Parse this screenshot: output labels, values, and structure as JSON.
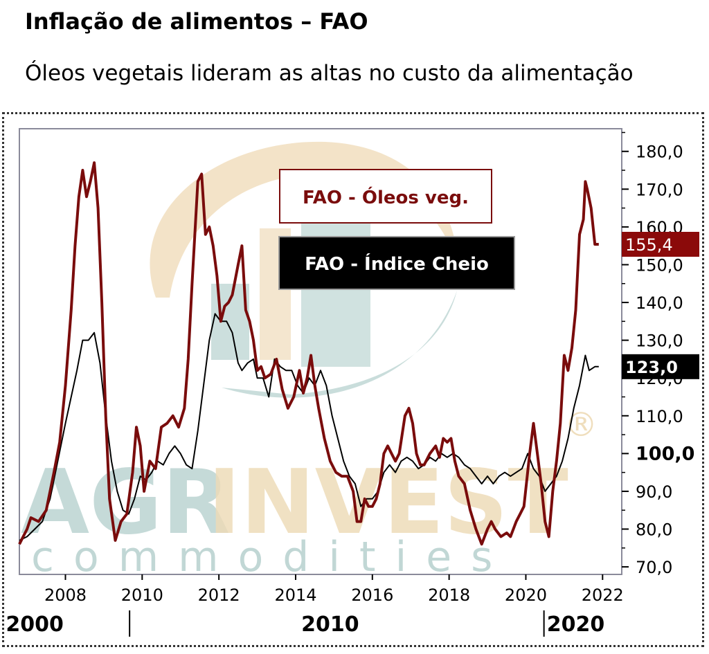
{
  "header": {
    "title": "Inflação de alimentos – FAO",
    "subtitle": "Óleos vegetais lideram as altas no custo da alimentação"
  },
  "colors": {
    "oils": "#7a0c0c",
    "full": "#000000",
    "watermark_teal": "#a9c9c6",
    "watermark_tan": "#ecd6ad"
  },
  "watermark": {
    "brand_part1": "AGR",
    "brand_part2": "INVEST",
    "tagline": "commodities",
    "registered": "®"
  },
  "chart_data": {
    "type": "line",
    "title": "",
    "xlabel": "",
    "ylabel": "",
    "xlim": [
      2006.8,
      2022.5
    ],
    "ylim": [
      68,
      186
    ],
    "x_ticks": [
      2008,
      2010,
      2012,
      2014,
      2016,
      2018,
      2020,
      2022
    ],
    "y_ticks": [
      {
        "value": 180,
        "label": "180,0"
      },
      {
        "value": 170,
        "label": "170,0"
      },
      {
        "value": 160,
        "label": "160,0"
      },
      {
        "value": 150,
        "label": "150,0"
      },
      {
        "value": 140,
        "label": "140,0"
      },
      {
        "value": 130,
        "label": "130,0"
      },
      {
        "value": 120,
        "label": "120,0"
      },
      {
        "value": 110,
        "label": "110,0"
      },
      {
        "value": 100,
        "label": "100,0",
        "bold": true
      },
      {
        "value": 90,
        "label": "90,0"
      },
      {
        "value": 80,
        "label": "80,0"
      },
      {
        "value": 70,
        "label": "70,0"
      }
    ],
    "decades": [
      {
        "label": "2000",
        "x": 2007.2
      },
      {
        "label": "2010",
        "x": 2014.9
      },
      {
        "label": "2020",
        "x": 2021.3
      }
    ],
    "decade_dividers": [
      2009.6,
      2020.4
    ],
    "legend": [
      {
        "name": "FAO - Óleos veg.",
        "style": "outline"
      },
      {
        "name": "FAO - Índice Cheio",
        "style": "filled"
      }
    ],
    "last_value_badges": [
      {
        "label": "155,4",
        "value": 155.4,
        "series": 0
      },
      {
        "label": "123,0",
        "value": 123.0,
        "series": 1
      }
    ],
    "series": [
      {
        "name": "FAO - Óleos veg.",
        "color": "#7a0c0c",
        "points": [
          [
            2006.8,
            76
          ],
          [
            2006.9,
            78
          ],
          [
            2007.0,
            80
          ],
          [
            2007.1,
            83
          ],
          [
            2007.3,
            82
          ],
          [
            2007.5,
            85
          ],
          [
            2007.7,
            95
          ],
          [
            2007.85,
            103
          ],
          [
            2008.0,
            118
          ],
          [
            2008.15,
            138
          ],
          [
            2008.25,
            155
          ],
          [
            2008.35,
            168
          ],
          [
            2008.45,
            175
          ],
          [
            2008.55,
            168
          ],
          [
            2008.65,
            172
          ],
          [
            2008.75,
            177
          ],
          [
            2008.85,
            165
          ],
          [
            2008.95,
            140
          ],
          [
            2009.05,
            110
          ],
          [
            2009.15,
            88
          ],
          [
            2009.3,
            77
          ],
          [
            2009.45,
            82
          ],
          [
            2009.6,
            84
          ],
          [
            2009.75,
            95
          ],
          [
            2009.85,
            107
          ],
          [
            2009.95,
            102
          ],
          [
            2010.05,
            90
          ],
          [
            2010.2,
            98
          ],
          [
            2010.35,
            96
          ],
          [
            2010.5,
            107
          ],
          [
            2010.65,
            108
          ],
          [
            2010.8,
            110
          ],
          [
            2010.95,
            107
          ],
          [
            2011.1,
            112
          ],
          [
            2011.2,
            125
          ],
          [
            2011.3,
            145
          ],
          [
            2011.45,
            172
          ],
          [
            2011.55,
            174
          ],
          [
            2011.65,
            158
          ],
          [
            2011.75,
            160
          ],
          [
            2011.85,
            155
          ],
          [
            2011.95,
            147
          ],
          [
            2012.05,
            135
          ],
          [
            2012.15,
            139
          ],
          [
            2012.25,
            140
          ],
          [
            2012.35,
            142
          ],
          [
            2012.5,
            150
          ],
          [
            2012.6,
            155
          ],
          [
            2012.7,
            138
          ],
          [
            2012.8,
            135
          ],
          [
            2012.9,
            130
          ],
          [
            2013.0,
            122
          ],
          [
            2013.1,
            123
          ],
          [
            2013.2,
            120
          ],
          [
            2013.35,
            121
          ],
          [
            2013.5,
            125
          ],
          [
            2013.65,
            117
          ],
          [
            2013.8,
            112
          ],
          [
            2013.95,
            115
          ],
          [
            2014.1,
            122
          ],
          [
            2014.2,
            116
          ],
          [
            2014.3,
            120
          ],
          [
            2014.4,
            126
          ],
          [
            2014.5,
            118
          ],
          [
            2014.6,
            112
          ],
          [
            2014.75,
            104
          ],
          [
            2014.9,
            98
          ],
          [
            2015.05,
            95
          ],
          [
            2015.2,
            94
          ],
          [
            2015.35,
            94
          ],
          [
            2015.5,
            90
          ],
          [
            2015.6,
            82
          ],
          [
            2015.7,
            82
          ],
          [
            2015.8,
            88
          ],
          [
            2015.9,
            86
          ],
          [
            2016.0,
            86
          ],
          [
            2016.1,
            88
          ],
          [
            2016.2,
            92
          ],
          [
            2016.3,
            100
          ],
          [
            2016.4,
            102
          ],
          [
            2016.5,
            100
          ],
          [
            2016.6,
            98
          ],
          [
            2016.7,
            100
          ],
          [
            2016.85,
            110
          ],
          [
            2016.95,
            112
          ],
          [
            2017.05,
            108
          ],
          [
            2017.15,
            100
          ],
          [
            2017.25,
            97
          ],
          [
            2017.35,
            97
          ],
          [
            2017.5,
            100
          ],
          [
            2017.65,
            102
          ],
          [
            2017.75,
            99
          ],
          [
            2017.85,
            104
          ],
          [
            2017.95,
            103
          ],
          [
            2018.05,
            104
          ],
          [
            2018.15,
            98
          ],
          [
            2018.25,
            94
          ],
          [
            2018.4,
            92
          ],
          [
            2018.55,
            85
          ],
          [
            2018.7,
            80
          ],
          [
            2018.85,
            76
          ],
          [
            2019.0,
            80
          ],
          [
            2019.1,
            82
          ],
          [
            2019.2,
            80
          ],
          [
            2019.35,
            78
          ],
          [
            2019.5,
            79
          ],
          [
            2019.6,
            78
          ],
          [
            2019.75,
            82
          ],
          [
            2019.85,
            84
          ],
          [
            2019.95,
            86
          ],
          [
            2020.1,
            100
          ],
          [
            2020.2,
            108
          ],
          [
            2020.3,
            100
          ],
          [
            2020.4,
            92
          ],
          [
            2020.5,
            82
          ],
          [
            2020.6,
            78
          ],
          [
            2020.7,
            90
          ],
          [
            2020.8,
            98
          ],
          [
            2020.9,
            108
          ],
          [
            2021.0,
            126
          ],
          [
            2021.1,
            122
          ],
          [
            2021.2,
            128
          ],
          [
            2021.3,
            138
          ],
          [
            2021.4,
            158
          ],
          [
            2021.5,
            162
          ],
          [
            2021.55,
            172
          ],
          [
            2021.6,
            170
          ],
          [
            2021.7,
            165
          ],
          [
            2021.8,
            155.4
          ],
          [
            2021.9,
            155.4
          ]
        ]
      },
      {
        "name": "FAO - Índice Cheio",
        "color": "#000000",
        "points": [
          [
            2006.8,
            77
          ],
          [
            2007.0,
            78
          ],
          [
            2007.2,
            80
          ],
          [
            2007.4,
            82
          ],
          [
            2007.6,
            88
          ],
          [
            2007.8,
            98
          ],
          [
            2008.0,
            108
          ],
          [
            2008.15,
            115
          ],
          [
            2008.3,
            122
          ],
          [
            2008.45,
            130
          ],
          [
            2008.6,
            130
          ],
          [
            2008.75,
            132
          ],
          [
            2008.9,
            124
          ],
          [
            2009.05,
            110
          ],
          [
            2009.2,
            98
          ],
          [
            2009.35,
            90
          ],
          [
            2009.5,
            85
          ],
          [
            2009.65,
            84
          ],
          [
            2009.8,
            88
          ],
          [
            2009.95,
            94
          ],
          [
            2010.1,
            93
          ],
          [
            2010.25,
            95
          ],
          [
            2010.4,
            98
          ],
          [
            2010.55,
            97
          ],
          [
            2010.7,
            100
          ],
          [
            2010.85,
            102
          ],
          [
            2011.0,
            100
          ],
          [
            2011.15,
            97
          ],
          [
            2011.3,
            96
          ],
          [
            2011.45,
            106
          ],
          [
            2011.6,
            118
          ],
          [
            2011.75,
            130
          ],
          [
            2011.9,
            137
          ],
          [
            2012.05,
            135
          ],
          [
            2012.2,
            135
          ],
          [
            2012.35,
            132
          ],
          [
            2012.5,
            124
          ],
          [
            2012.6,
            122
          ],
          [
            2012.75,
            124
          ],
          [
            2012.9,
            125
          ],
          [
            2013.0,
            120
          ],
          [
            2013.15,
            120
          ],
          [
            2013.3,
            115
          ],
          [
            2013.45,
            125
          ],
          [
            2013.6,
            123
          ],
          [
            2013.75,
            122
          ],
          [
            2013.9,
            122
          ],
          [
            2014.05,
            118
          ],
          [
            2014.2,
            116
          ],
          [
            2014.35,
            120
          ],
          [
            2014.5,
            118
          ],
          [
            2014.65,
            122
          ],
          [
            2014.8,
            118
          ],
          [
            2014.95,
            110
          ],
          [
            2015.1,
            104
          ],
          [
            2015.25,
            98
          ],
          [
            2015.4,
            94
          ],
          [
            2015.55,
            92
          ],
          [
            2015.7,
            86
          ],
          [
            2015.85,
            88
          ],
          [
            2016.0,
            88
          ],
          [
            2016.15,
            90
          ],
          [
            2016.3,
            95
          ],
          [
            2016.45,
            97
          ],
          [
            2016.6,
            95
          ],
          [
            2016.75,
            98
          ],
          [
            2016.9,
            99
          ],
          [
            2017.05,
            98
          ],
          [
            2017.2,
            96
          ],
          [
            2017.35,
            97
          ],
          [
            2017.5,
            99
          ],
          [
            2017.65,
            98
          ],
          [
            2017.8,
            100
          ],
          [
            2017.95,
            99
          ],
          [
            2018.1,
            100
          ],
          [
            2018.25,
            99
          ],
          [
            2018.4,
            97
          ],
          [
            2018.55,
            96
          ],
          [
            2018.7,
            94
          ],
          [
            2018.85,
            92
          ],
          [
            2019.0,
            94
          ],
          [
            2019.15,
            92
          ],
          [
            2019.3,
            94
          ],
          [
            2019.45,
            95
          ],
          [
            2019.6,
            94
          ],
          [
            2019.75,
            95
          ],
          [
            2019.9,
            96
          ],
          [
            2020.05,
            100
          ],
          [
            2020.2,
            96
          ],
          [
            2020.35,
            94
          ],
          [
            2020.5,
            90
          ],
          [
            2020.65,
            92
          ],
          [
            2020.8,
            94
          ],
          [
            2020.95,
            98
          ],
          [
            2021.1,
            104
          ],
          [
            2021.25,
            112
          ],
          [
            2021.4,
            118
          ],
          [
            2021.55,
            126
          ],
          [
            2021.65,
            122
          ],
          [
            2021.8,
            123.0
          ],
          [
            2021.9,
            123.0
          ]
        ]
      }
    ]
  }
}
